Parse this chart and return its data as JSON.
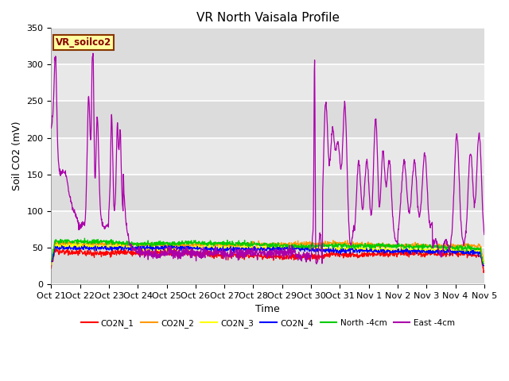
{
  "title": "VR North Vaisala Profile",
  "ylabel": "Soil CO2 (mV)",
  "xlabel": "Time",
  "ylim": [
    0,
    350
  ],
  "yticks": [
    0,
    50,
    100,
    150,
    200,
    250,
    300,
    350
  ],
  "xtick_labels": [
    "Oct 21",
    "Oct 22",
    "Oct 23",
    "Oct 24",
    "Oct 25",
    "Oct 26",
    "Oct 27",
    "Oct 28",
    "Oct 29",
    "Oct 30",
    "Oct 31",
    "Nov 1",
    "Nov 2",
    "Nov 3",
    "Nov 4",
    "Nov 5"
  ],
  "legend_label": "VR_soilco2",
  "series_labels": [
    "CO2N_1",
    "CO2N_2",
    "CO2N_3",
    "CO2N_4",
    "North -4cm",
    "East -4cm"
  ],
  "series_colors": [
    "#ff0000",
    "#ff9900",
    "#ffff00",
    "#0000ff",
    "#00cc00",
    "#aa00aa"
  ],
  "plot_bg_color": "#e8e8e8",
  "band_color": "#d0d0d0",
  "n_points": 1400,
  "title_fontsize": 11,
  "label_fontsize": 9,
  "tick_fontsize": 8
}
